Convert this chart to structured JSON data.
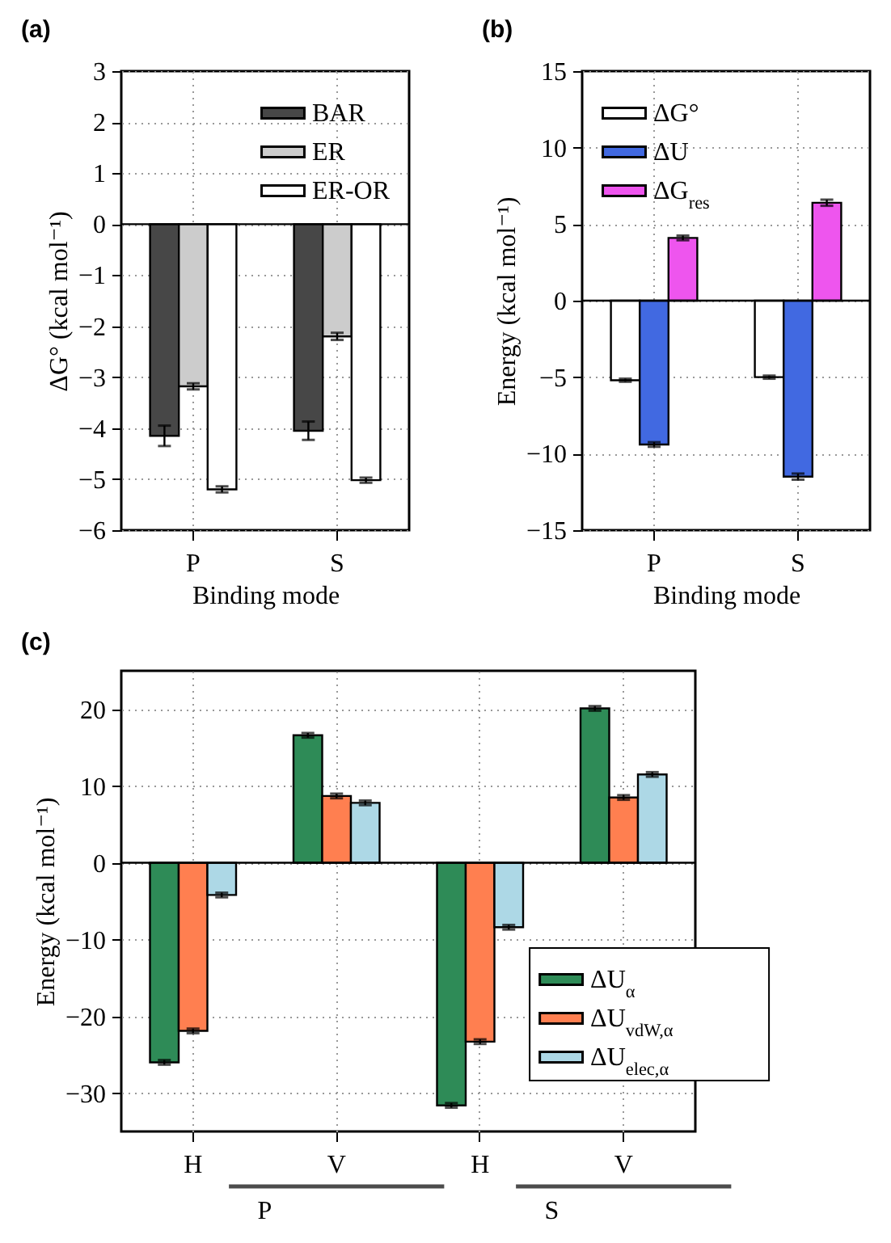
{
  "chart_data": [
    {
      "type": "bar",
      "title": "(a)",
      "xlabel": "Binding mode",
      "ylabel": "ΔG° (kcal mol⁻¹)",
      "categories": [
        "P",
        "S"
      ],
      "series": [
        {
          "name": "BAR",
          "color": "#474747",
          "values": [
            -4.15,
            -4.05
          ],
          "errors": [
            0.2,
            0.18
          ]
        },
        {
          "name": "ER",
          "color": "#cccccc",
          "values": [
            -3.18,
            -2.2
          ],
          "errors": [
            0.06,
            0.07
          ]
        },
        {
          "name": "ER-OR",
          "color": "#ffffff",
          "values": [
            -5.2,
            -5.02
          ],
          "errors": [
            0.06,
            0.05
          ]
        }
      ],
      "ylim": [
        -6,
        3
      ],
      "yticks": [
        {
          "value": -6,
          "label": "−6"
        },
        {
          "value": -5,
          "label": "−5"
        },
        {
          "value": -4,
          "label": "−4"
        },
        {
          "value": -3,
          "label": "−3"
        },
        {
          "value": -2,
          "label": "−2"
        },
        {
          "value": -1,
          "label": "−1"
        },
        0,
        1,
        2,
        3
      ],
      "ref_lines": [
        {
          "axis": "y",
          "value": 0
        }
      ],
      "grid": true,
      "legend": "top right"
    },
    {
      "type": "bar",
      "title": "(b)",
      "xlabel": "Binding mode",
      "ylabel": "Energy (kcal mol⁻¹)",
      "categories": [
        "P",
        "S"
      ],
      "series": [
        {
          "name": "ΔG°",
          "color": "#ffffff",
          "values": [
            -5.2,
            -5.0
          ],
          "errors": [
            0.1,
            0.1
          ]
        },
        {
          "name": "ΔU",
          "color": "#4169e1",
          "values": [
            -9.4,
            -11.5
          ],
          "errors": [
            0.15,
            0.2
          ]
        },
        {
          "name": "ΔG$_{res}$",
          "color": "#ee55ee",
          "values": [
            4.1,
            6.4
          ],
          "errors": [
            0.15,
            0.2
          ]
        }
      ],
      "ylim": [
        -15,
        15
      ],
      "yticks": [
        {
          "value": -15,
          "label": "−15"
        },
        {
          "value": -10,
          "label": "−10"
        },
        {
          "value": -5,
          "label": "−5"
        },
        0,
        5,
        10,
        15
      ],
      "ref_lines": [
        {
          "axis": "y",
          "value": 0
        }
      ],
      "grid": true,
      "legend": "top left"
    },
    {
      "type": "bar",
      "title": "(c)",
      "ylabel": "Energy (kcal mol⁻¹)",
      "categories": [
        "H",
        "V",
        "H",
        "V"
      ],
      "series": [
        {
          "name": "ΔU$_{α}$",
          "color": "#2e8b57",
          "values": [
            -26.0,
            16.6,
            -31.6,
            20.1
          ],
          "errors": [
            0.3,
            0.3,
            0.3,
            0.3
          ]
        },
        {
          "name": "ΔU$_{vdW,α}$",
          "color": "#ff7f50",
          "values": [
            -21.9,
            8.7,
            -23.3,
            8.5
          ],
          "errors": [
            0.3,
            0.3,
            0.3,
            0.3
          ]
        },
        {
          "name": "ΔU$_{elec,α}$",
          "color": "#add8e6",
          "values": [
            -4.2,
            7.8,
            -8.4,
            11.5
          ],
          "errors": [
            0.3,
            0.3,
            0.3,
            0.3
          ]
        }
      ],
      "ylim": [
        -35,
        25
      ],
      "yticks": [
        {
          "value": -30,
          "label": "−30"
        },
        {
          "value": -20,
          "label": "−20"
        },
        {
          "value": -10,
          "label": "−10"
        },
        0,
        10,
        20
      ],
      "ref_lines": [
        {
          "axis": "y",
          "value": 0
        }
      ],
      "grid": true,
      "legend": "bottom right",
      "annotations": [
        "P",
        "S"
      ]
    }
  ]
}
